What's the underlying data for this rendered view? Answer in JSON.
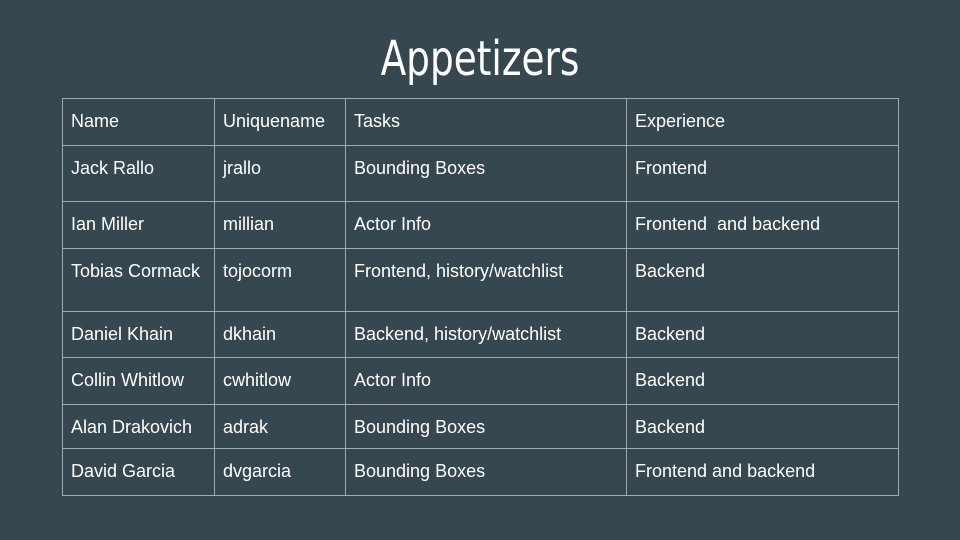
{
  "slide": {
    "title": "Appetizers"
  },
  "table": {
    "headers": [
      "Name",
      "Uniquename",
      "Tasks",
      "Experience"
    ],
    "rows": [
      [
        "Jack Rallo",
        "jrallo",
        "Bounding Boxes",
        "Frontend"
      ],
      [
        "Ian Miller",
        "millian",
        "Actor Info",
        "Frontend  and backend"
      ],
      [
        "Tobias Cormack",
        "tojocorm",
        "Frontend, history/watchlist",
        "Backend"
      ],
      [
        "Daniel Khain",
        "dkhain",
        "Backend, history/watchlist",
        "Backend"
      ],
      [
        "Collin Whitlow",
        "cwhitlow",
        "Actor Info",
        "Backend"
      ],
      [
        "Alan Drakovich",
        "adrak",
        "Bounding Boxes",
        "Backend"
      ],
      [
        "David Garcia",
        "dvgarcia",
        "Bounding Boxes",
        "Frontend and backend"
      ]
    ]
  },
  "colors": {
    "background": "#37474f",
    "text": "#ffffff",
    "grid": "#a3aaae"
  }
}
